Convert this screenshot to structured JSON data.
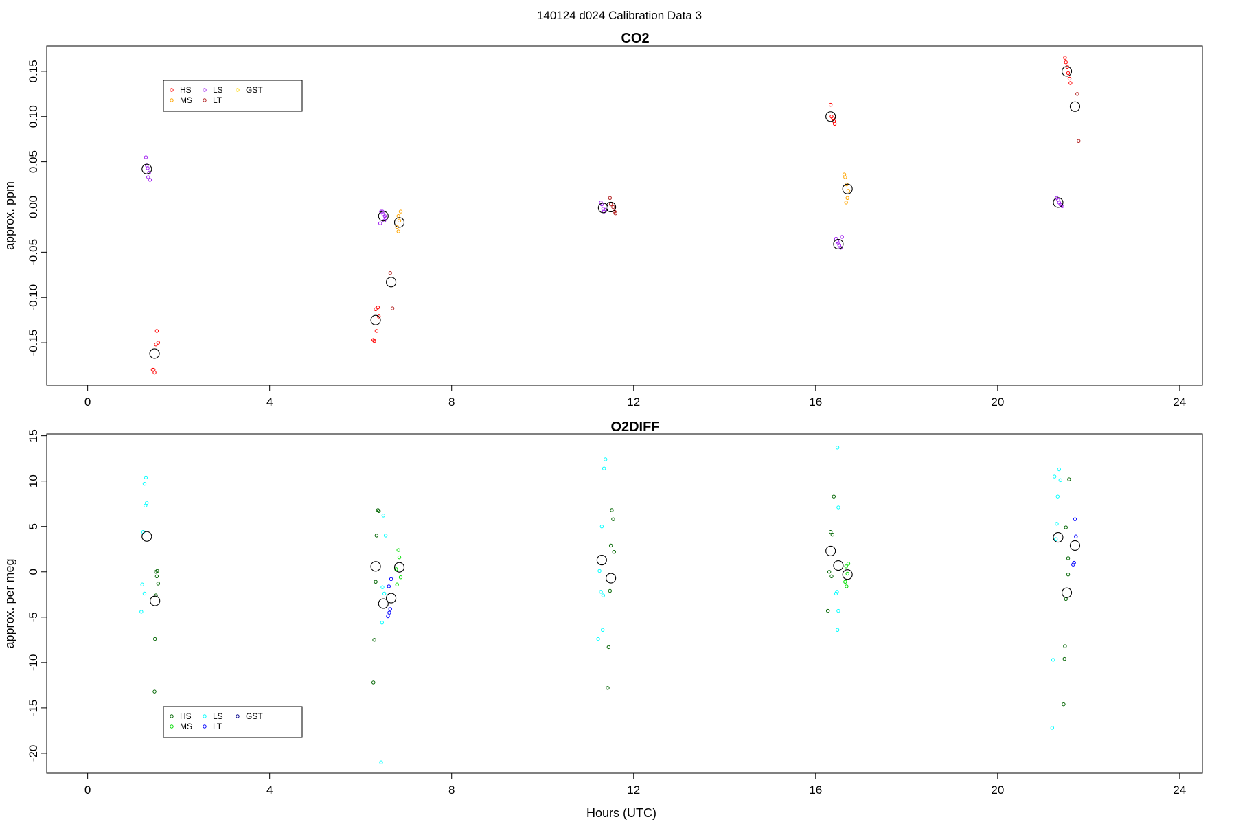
{
  "figure": {
    "title": "140124   d024   Calibration Data 3",
    "xlabel": "Hours (UTC)"
  },
  "colors": {
    "HS": "#ff0000",
    "MS": "#ffa500",
    "LS": "#a020f0",
    "LT": "#b22222",
    "GST": "#ffd700",
    "mean": "#000000"
  },
  "chart_data": [
    {
      "type": "scatter",
      "title": "CO2",
      "xlabel": "",
      "ylabel": "approx. ppm",
      "xlim": [
        -0.9,
        24.5
      ],
      "ylim": [
        -0.197,
        0.178
      ],
      "xticks": [
        0,
        4,
        8,
        12,
        16,
        20,
        24
      ],
      "yticks": [
        -0.15,
        -0.1,
        -0.05,
        0.0,
        0.05,
        0.1,
        0.15
      ],
      "ytick_labels": [
        "-0.15",
        "-0.10",
        "-0.05",
        "0.00",
        "0.05",
        "0.10",
        "0.15"
      ],
      "legend": {
        "position": "top-left",
        "entries": [
          "HS",
          "MS",
          "LS",
          "LT",
          "GST"
        ],
        "colors": [
          "#ff0000",
          "#ffa500",
          "#a020f0",
          "#b22222",
          "#ffd700"
        ]
      },
      "series": [
        {
          "name": "HS",
          "color": "#ff0000",
          "points": [
            [
              1.45,
              -0.18
            ],
            [
              1.47,
              -0.183
            ],
            [
              1.43,
              -0.18
            ],
            [
              1.52,
              -0.137
            ],
            [
              1.5,
              -0.152
            ],
            [
              1.55,
              -0.15
            ],
            [
              6.28,
              -0.147
            ],
            [
              6.3,
              -0.148
            ],
            [
              6.33,
              -0.113
            ],
            [
              6.38,
              -0.111
            ],
            [
              6.35,
              -0.137
            ],
            [
              6.4,
              -0.121
            ],
            [
              16.33,
              0.113
            ],
            [
              16.35,
              0.1
            ],
            [
              16.4,
              0.095
            ],
            [
              16.42,
              0.092
            ],
            [
              16.38,
              0.098
            ],
            [
              21.48,
              0.165
            ],
            [
              21.5,
              0.16
            ],
            [
              21.53,
              0.155
            ],
            [
              21.55,
              0.148
            ],
            [
              21.58,
              0.142
            ],
            [
              21.6,
              0.137
            ]
          ]
        },
        {
          "name": "MS",
          "color": "#ffa500",
          "points": [
            [
              6.83,
              -0.01
            ],
            [
              6.85,
              -0.015
            ],
            [
              6.88,
              -0.005
            ],
            [
              6.8,
              -0.022
            ],
            [
              6.83,
              -0.027
            ],
            [
              16.63,
              0.036
            ],
            [
              16.65,
              0.033
            ],
            [
              16.68,
              0.025
            ],
            [
              16.72,
              0.018
            ],
            [
              16.7,
              0.01
            ],
            [
              16.67,
              0.005
            ]
          ]
        },
        {
          "name": "LS",
          "color": "#a020f0",
          "points": [
            [
              1.28,
              0.055
            ],
            [
              1.3,
              0.046
            ],
            [
              1.32,
              0.043
            ],
            [
              1.35,
              0.038
            ],
            [
              1.33,
              0.033
            ],
            [
              1.37,
              0.03
            ],
            [
              6.45,
              -0.005
            ],
            [
              6.48,
              -0.005
            ],
            [
              6.5,
              -0.008
            ],
            [
              6.53,
              -0.01
            ],
            [
              6.55,
              -0.012
            ],
            [
              6.52,
              -0.015
            ],
            [
              6.43,
              -0.018
            ],
            [
              11.28,
              0.005
            ],
            [
              11.3,
              0.003
            ],
            [
              11.33,
              -0.002
            ],
            [
              11.35,
              -0.005
            ],
            [
              11.38,
              -0.003
            ],
            [
              16.45,
              -0.035
            ],
            [
              16.48,
              -0.038
            ],
            [
              16.5,
              -0.04
            ],
            [
              16.52,
              -0.042
            ],
            [
              16.55,
              -0.045
            ],
            [
              16.58,
              -0.033
            ],
            [
              21.3,
              0.01
            ],
            [
              21.33,
              0.008
            ],
            [
              21.35,
              0.005
            ],
            [
              21.38,
              0.003
            ],
            [
              21.4,
              0.002
            ],
            [
              21.42,
              0.001
            ]
          ]
        },
        {
          "name": "LT",
          "color": "#b22222",
          "points": [
            [
              6.65,
              -0.073
            ],
            [
              6.7,
              -0.112
            ],
            [
              11.48,
              0.01
            ],
            [
              11.5,
              0.003
            ],
            [
              11.55,
              0.0
            ],
            [
              11.58,
              -0.005
            ],
            [
              11.6,
              -0.007
            ],
            [
              21.75,
              0.125
            ],
            [
              21.78,
              0.073
            ]
          ]
        },
        {
          "name": "GST",
          "color": "#ffd700",
          "points": []
        }
      ],
      "means": [
        [
          1.3,
          0.042
        ],
        [
          1.47,
          -0.162
        ],
        [
          6.33,
          -0.125
        ],
        [
          6.5,
          -0.01
        ],
        [
          6.67,
          -0.083
        ],
        [
          6.85,
          -0.017
        ],
        [
          11.33,
          -0.001
        ],
        [
          11.5,
          0.0
        ],
        [
          16.33,
          0.1
        ],
        [
          16.5,
          -0.041
        ],
        [
          16.7,
          0.02
        ],
        [
          21.33,
          0.005
        ],
        [
          21.52,
          0.15
        ],
        [
          21.7,
          0.111
        ]
      ]
    },
    {
      "type": "scatter",
      "title": "O2DIFF",
      "xlabel": "Hours (UTC)",
      "ylabel": "approx. per meg",
      "xlim": [
        -0.9,
        24.5
      ],
      "ylim": [
        -22.2,
        15.2
      ],
      "xticks": [
        0,
        4,
        8,
        12,
        16,
        20,
        24
      ],
      "yticks": [
        -20,
        -15,
        -10,
        -5,
        0,
        5,
        10,
        15
      ],
      "ytick_labels": [
        "-20",
        "-15",
        "-10",
        "-5",
        "0",
        "5",
        "10",
        "15"
      ],
      "legend": {
        "position": "bottom-left",
        "entries": [
          "HS",
          "MS",
          "LS",
          "LT",
          "GST"
        ],
        "colors": [
          "#006400",
          "#00dd00",
          "#00ffff",
          "#0000ff",
          "#00008b"
        ]
      },
      "series": [
        {
          "name": "HS",
          "color": "#006400",
          "points": [
            [
              1.47,
              -13.2
            ],
            [
              1.48,
              -7.4
            ],
            [
              1.5,
              -2.6
            ],
            [
              1.52,
              -0.5
            ],
            [
              1.55,
              -1.3
            ],
            [
              1.53,
              0.1
            ],
            [
              1.5,
              0.0
            ],
            [
              6.28,
              -12.2
            ],
            [
              6.3,
              -7.5
            ],
            [
              6.33,
              -1.1
            ],
            [
              6.35,
              4.0
            ],
            [
              6.38,
              6.8
            ],
            [
              6.4,
              6.7
            ],
            [
              11.52,
              6.8
            ],
            [
              11.55,
              5.8
            ],
            [
              11.5,
              2.9
            ],
            [
              11.57,
              2.2
            ],
            [
              11.48,
              -2.1
            ],
            [
              11.45,
              -8.3
            ],
            [
              11.43,
              -12.8
            ],
            [
              16.27,
              -4.3
            ],
            [
              16.33,
              4.4
            ],
            [
              16.37,
              4.1
            ],
            [
              16.3,
              0.0
            ],
            [
              16.35,
              -0.5
            ],
            [
              16.4,
              8.3
            ],
            [
              21.45,
              -14.6
            ],
            [
              21.47,
              -9.6
            ],
            [
              21.48,
              -8.2
            ],
            [
              21.5,
              -3.0
            ],
            [
              21.55,
              -0.3
            ],
            [
              21.57,
              10.2
            ],
            [
              21.55,
              1.5
            ],
            [
              21.5,
              4.9
            ]
          ]
        },
        {
          "name": "MS",
          "color": "#00dd00",
          "points": [
            [
              6.83,
              2.4
            ],
            [
              6.85,
              1.6
            ],
            [
              6.88,
              -0.6
            ],
            [
              6.8,
              -1.4
            ],
            [
              6.78,
              0.3
            ],
            [
              16.67,
              0.6
            ],
            [
              16.7,
              -0.2
            ],
            [
              16.72,
              0.9
            ],
            [
              16.68,
              -1.6
            ],
            [
              16.65,
              -1.1
            ]
          ]
        },
        {
          "name": "LS",
          "color": "#00ffff",
          "points": [
            [
              1.28,
              10.4
            ],
            [
              1.25,
              9.7
            ],
            [
              1.3,
              7.6
            ],
            [
              1.27,
              7.3
            ],
            [
              1.22,
              4.4
            ],
            [
              1.2,
              -1.4
            ],
            [
              1.25,
              -2.4
            ],
            [
              1.18,
              -4.4
            ],
            [
              6.45,
              -21.0
            ],
            [
              6.5,
              6.2
            ],
            [
              6.55,
              4.0
            ],
            [
              6.48,
              -1.7
            ],
            [
              6.52,
              -2.4
            ],
            [
              6.47,
              -5.6
            ],
            [
              11.38,
              12.4
            ],
            [
              11.35,
              11.4
            ],
            [
              11.3,
              5.0
            ],
            [
              11.25,
              0.1
            ],
            [
              11.28,
              -2.2
            ],
            [
              11.33,
              -2.6
            ],
            [
              11.32,
              -6.4
            ],
            [
              11.22,
              -7.4
            ],
            [
              16.48,
              13.7
            ],
            [
              16.5,
              7.1
            ],
            [
              16.45,
              -2.4
            ],
            [
              16.47,
              -2.2
            ],
            [
              16.5,
              -4.3
            ],
            [
              16.48,
              -6.4
            ],
            [
              21.25,
              10.5
            ],
            [
              21.35,
              11.3
            ],
            [
              21.38,
              10.1
            ],
            [
              21.32,
              8.3
            ],
            [
              21.3,
              5.3
            ],
            [
              21.28,
              3.6
            ],
            [
              21.22,
              -9.7
            ],
            [
              21.2,
              -17.2
            ]
          ]
        },
        {
          "name": "LT",
          "color": "#0000ff",
          "points": [
            [
              6.6,
              -4.9
            ],
            [
              6.63,
              -4.5
            ],
            [
              6.65,
              -4.1
            ],
            [
              6.62,
              -1.6
            ],
            [
              6.67,
              -0.8
            ],
            [
              21.7,
              5.8
            ],
            [
              21.72,
              3.9
            ],
            [
              21.68,
              1.0
            ],
            [
              21.66,
              0.8
            ]
          ]
        },
        {
          "name": "GST",
          "color": "#00008b",
          "points": []
        }
      ],
      "means": [
        [
          1.3,
          3.9
        ],
        [
          1.48,
          -3.2
        ],
        [
          6.33,
          0.6
        ],
        [
          6.5,
          -3.5
        ],
        [
          6.67,
          -2.9
        ],
        [
          6.85,
          0.5
        ],
        [
          11.3,
          1.3
        ],
        [
          11.5,
          -0.7
        ],
        [
          16.33,
          2.3
        ],
        [
          16.5,
          0.7
        ],
        [
          16.7,
          -0.3
        ],
        [
          21.33,
          3.8
        ],
        [
          21.52,
          -2.3
        ],
        [
          21.7,
          2.9
        ]
      ]
    }
  ]
}
